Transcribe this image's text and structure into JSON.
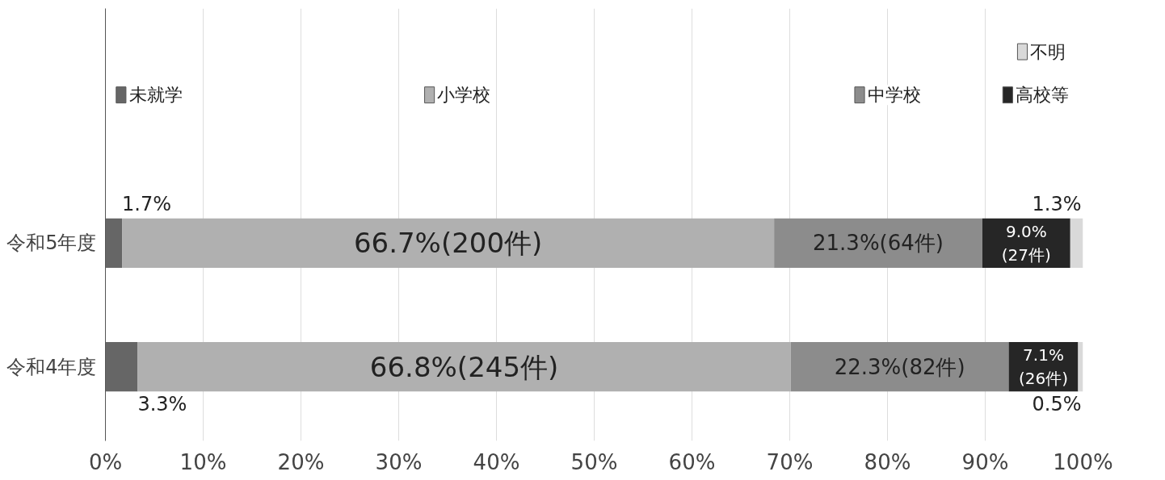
{
  "chart_data": {
    "type": "bar",
    "orientation": "horizontal",
    "stacked": true,
    "categories": [
      "令和5年度",
      "令和4年度"
    ],
    "xlim": [
      0,
      100
    ],
    "xticks": [
      {
        "value": 0,
        "label": "0%"
      },
      {
        "value": 10,
        "label": "10%"
      },
      {
        "value": 20,
        "label": "20%"
      },
      {
        "value": 30,
        "label": "30%"
      },
      {
        "value": 40,
        "label": "40%"
      },
      {
        "value": 50,
        "label": "50%"
      },
      {
        "value": 60,
        "label": "60%"
      },
      {
        "value": 70,
        "label": "70%"
      },
      {
        "value": 80,
        "label": "80%"
      },
      {
        "value": 90,
        "label": "90%"
      },
      {
        "value": 100,
        "label": "100%"
      }
    ],
    "grid": "x",
    "legend": "top",
    "series": [
      {
        "name": "未就学",
        "color": "#666666",
        "values": [
          1.7,
          3.3
        ],
        "value_labels": [
          "1.7%",
          "3.3%"
        ]
      },
      {
        "name": "小学校",
        "color": "#b0b0b0",
        "values": [
          66.7,
          66.8
        ],
        "value_labels": [
          "66.7%(200件)",
          "66.8%(245件)"
        ]
      },
      {
        "name": "中学校",
        "color": "#8c8c8c",
        "values": [
          21.3,
          22.3
        ],
        "value_labels": [
          "21.3%(64件)",
          "22.3%(82件)"
        ]
      },
      {
        "name": "高校等",
        "color": "#262626",
        "values": [
          9.0,
          7.1
        ],
        "value_labels": [
          "9.0%\n(27件)",
          "7.1%\n(26件)"
        ]
      },
      {
        "name": "不明",
        "color": "#d9d9d9",
        "values": [
          1.3,
          0.5
        ],
        "value_labels": [
          "1.3%",
          "0.5%"
        ]
      }
    ]
  }
}
